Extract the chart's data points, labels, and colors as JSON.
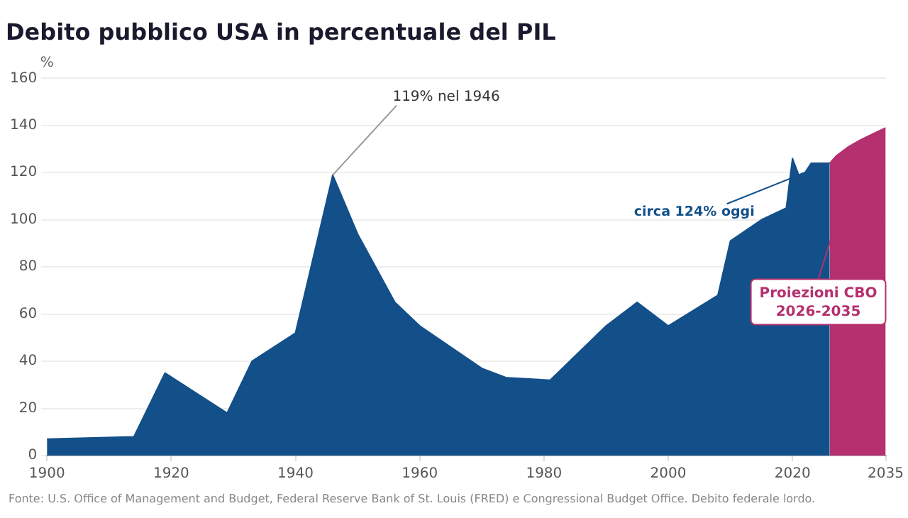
{
  "chart_data": {
    "type": "area",
    "title": "Debito pubblico USA in percentuale del PIL",
    "ylabel": "%",
    "xlim": [
      1900,
      2035
    ],
    "xticks": [
      1900,
      1920,
      1940,
      1960,
      1980,
      2000,
      2020,
      2035
    ],
    "ylim": [
      0,
      160
    ],
    "yticks": [
      0,
      20,
      40,
      60,
      80,
      100,
      120,
      140,
      160
    ],
    "grid": "y",
    "legend": false,
    "series": [
      {
        "color": "#13508a",
        "x": [
          1900,
          1914,
          1919,
          1929,
          1933,
          1940,
          1946,
          1950,
          1956,
          1960,
          1970,
          1974,
          1981,
          1990,
          1995,
          2000,
          2008,
          2010,
          2015,
          2019,
          2020,
          2021,
          2022,
          2023,
          2026
        ],
        "values": [
          7,
          8,
          35,
          18,
          40,
          52,
          119,
          94,
          65,
          55,
          37,
          33,
          32,
          55,
          65,
          55,
          68,
          91,
          100,
          105,
          126,
          119,
          120,
          124,
          124
        ]
      },
      {
        "color": "#b5306f",
        "x": [
          2026,
          2027,
          2029,
          2031,
          2033,
          2035
        ],
        "values": [
          124,
          127,
          131,
          134,
          136.5,
          139
        ]
      }
    ],
    "annotations": [
      {
        "text": "119% nel 1946",
        "x": 1946,
        "y": 119
      },
      {
        "text": "circa 124% oggi",
        "x": 2022,
        "y": 120
      },
      {
        "text": "Proiezioni CBO\n2026-2035",
        "x": 2031,
        "y": 132
      },
      "Fonte: U.S. Office of Management and Budget, Federal Reserve Bank of St. Louis (FRED) e Congressional Budget Office. Debito federale lordo."
    ]
  }
}
